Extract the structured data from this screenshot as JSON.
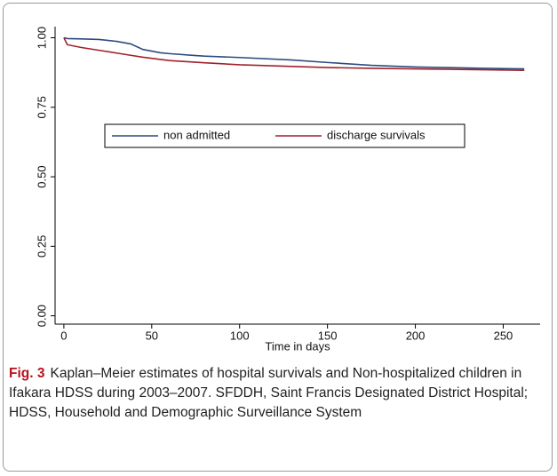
{
  "chart_data": {
    "type": "line",
    "x_label": "Time in days",
    "x": [
      0,
      2,
      10,
      20,
      30,
      38,
      45,
      55,
      60,
      75,
      80,
      100,
      130,
      150,
      175,
      200,
      240,
      262
    ],
    "series": [
      {
        "name": "non admitted",
        "color": "#2b4c80",
        "values": [
          1.0,
          0.997,
          0.996,
          0.994,
          0.987,
          0.978,
          0.958,
          0.946,
          0.943,
          0.936,
          0.934,
          0.929,
          0.92,
          0.911,
          0.901,
          0.895,
          0.89,
          0.888
        ]
      },
      {
        "name": "discharge survivals",
        "color": "#a0222a",
        "values": [
          1.0,
          0.975,
          0.965,
          0.955,
          0.945,
          0.937,
          0.93,
          0.922,
          0.918,
          0.912,
          0.91,
          0.903,
          0.897,
          0.893,
          0.89,
          0.888,
          0.885,
          0.883
        ]
      }
    ],
    "xlim": [
      -5,
      271
    ],
    "xticks": [
      0,
      50,
      100,
      150,
      200,
      250
    ],
    "ylim": [
      -0.03,
      1.04
    ],
    "yticks": [
      {
        "value": 0,
        "label": "0.00"
      },
      {
        "value": 0.25,
        "label": "0.25"
      },
      {
        "value": 0.5,
        "label": "0.50"
      },
      {
        "value": 0.75,
        "label": "0.75"
      },
      {
        "value": 1,
        "label": "1.00"
      }
    ],
    "grid": false
  },
  "caption": {
    "label": "Fig. 3",
    "text": "Kaplan–Meier estimates of hospital survivals and Non-hospitalized children in Ifakara HDSS during 2003–2007. SFDDH, Saint Francis Designated District Hospital; HDSS, Household and Demographic Surveillance System"
  }
}
